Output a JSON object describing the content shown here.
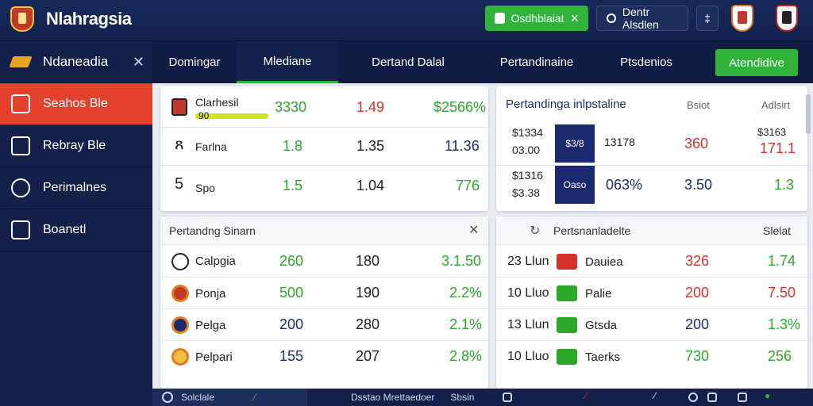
{
  "app": {
    "title": "Nlahragsia"
  },
  "header": {
    "btn_green_label": "Osdhblaiat",
    "btn_dark_label": "Dentr Alsdlen",
    "btn_icon_glyph": "‡"
  },
  "sidebar": {
    "head_label": "Ndaneadia",
    "items": [
      {
        "label": "Seahos Ble"
      },
      {
        "label": "Rebray Ble"
      },
      {
        "label": "Perimalnes"
      },
      {
        "label": "Boanetl"
      }
    ]
  },
  "tabs": [
    "Domingar",
    "Mlediane",
    "Dertand Dalal",
    "Pertandinaine",
    "Ptsdenios"
  ],
  "tab_button": "Atendidive",
  "card1": {
    "rows": [
      {
        "name": "Clarhesil",
        "sub": "90",
        "a": "3330",
        "b": "1.49",
        "c": "$2566%"
      },
      {
        "name": "Farlna",
        "a": "1.8",
        "b": "1.35",
        "c": "11.36"
      },
      {
        "name": "Spo",
        "a": "1.5",
        "b": "1.04",
        "c": "776"
      }
    ]
  },
  "card2": {
    "title": "Pertandinga inlpstaline",
    "col1": "Bsiot",
    "col2": "Adlsirt",
    "rows": [
      {
        "top": "$1334",
        "bottom": "03.00",
        "box": "$3/8",
        "mid": "13178",
        "a": "360",
        "r_top": "$3163",
        "r_bottom": "171.1"
      },
      {
        "top": "$1316",
        "bottom": "$3.38",
        "box": "Oaso",
        "mid": "063%",
        "a": "3.50",
        "r": "1.3"
      }
    ]
  },
  "card3": {
    "title": "Pertandng Sinarn",
    "rows": [
      {
        "name": "Calpgia",
        "a": "260",
        "b": "180",
        "c": "3.1.50"
      },
      {
        "name": "Ponja",
        "a": "500",
        "b": "190",
        "c": "2.2%"
      },
      {
        "name": "Pelga",
        "a": "200",
        "b": "280",
        "c": "2.1%"
      },
      {
        "name": "Pelpari",
        "a": "155",
        "b": "207",
        "c": "2.8%"
      }
    ]
  },
  "card4": {
    "title": "Pertsnanladelte",
    "col": "Slelat",
    "rows": [
      {
        "time": "23 Llun",
        "name": "Dauiea",
        "a": "326",
        "b": "1.74"
      },
      {
        "time": "10 Lluo",
        "name": "Palie",
        "a": "200",
        "b": "7.50"
      },
      {
        "time": "13 Llun",
        "name": "Gtsda",
        "a": "200",
        "b": "1.3%"
      },
      {
        "time": "10 Lluo",
        "name": "Taerks",
        "a": "730",
        "b": "256"
      }
    ]
  },
  "bottombar": {
    "left": "Solclale",
    "mid": "Dsstao Mrettaedoer",
    "mid2": "Sbsin"
  }
}
